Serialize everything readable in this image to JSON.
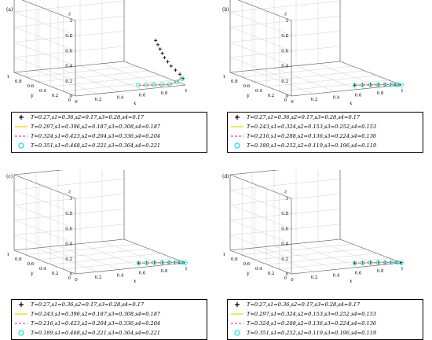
{
  "chart_data": [
    {
      "type": "scatter",
      "panel_label": "(a)",
      "axes": {
        "xlabel": "x",
        "ylabel": "y",
        "zlabel": "z",
        "x_ticks": [
          "0",
          "0.2",
          "0.4",
          "0.6",
          "0.8",
          "1"
        ],
        "y_ticks": [
          "1",
          "0.8",
          "0.6",
          "0.4",
          "0.2",
          "0"
        ],
        "z_ticks": [
          "0",
          "0.2",
          "0.4",
          "0.6",
          "0.8",
          "1"
        ],
        "xlim": [
          0,
          1
        ],
        "ylim": [
          0,
          1
        ],
        "zlim": [
          0,
          1
        ]
      },
      "series": [
        {
          "name": "T=0.27,s1=0.36,s2=0.17,s3=0.28,s4=0.17",
          "marker": "plus",
          "color": "#000000",
          "points": [
            [
              0.73,
              0.0,
              0.63
            ],
            [
              0.75,
              0.0,
              0.57
            ],
            [
              0.77,
              0.0,
              0.51
            ],
            [
              0.79,
              0.0,
              0.45
            ],
            [
              0.81,
              0.0,
              0.39
            ],
            [
              0.84,
              0.0,
              0.33
            ],
            [
              0.87,
              0.0,
              0.27
            ],
            [
              0.91,
              0.0,
              0.21
            ],
            [
              0.95,
              0.0,
              0.15
            ],
            [
              0.98,
              0.0,
              0.09
            ]
          ]
        },
        {
          "name": "T=0.297,s1=0.396,s2=0.187,s3=0.308,s4=0.187",
          "marker": "line",
          "color": "#f5d800",
          "points": [
            [
              0.66,
              0.14,
              0.0
            ],
            [
              0.72,
              0.12,
              0.0
            ],
            [
              0.78,
              0.1,
              0.0
            ],
            [
              0.84,
              0.08,
              0.0
            ],
            [
              0.9,
              0.06,
              0.0
            ],
            [
              0.95,
              0.05,
              0.04
            ],
            [
              0.98,
              0.02,
              0.1
            ]
          ]
        },
        {
          "name": "T=0.324,s1=0.423,s2=0.204,s3=0.336,s4=0.204",
          "marker": "dash",
          "color": "#e040e0",
          "points": [
            [
              0.66,
              0.15,
              0.0
            ],
            [
              0.72,
              0.13,
              0.0
            ],
            [
              0.78,
              0.11,
              0.0
            ],
            [
              0.84,
              0.09,
              0.0
            ],
            [
              0.9,
              0.07,
              0.0
            ],
            [
              0.95,
              0.05,
              0.04
            ],
            [
              0.98,
              0.02,
              0.09
            ]
          ]
        },
        {
          "name": "T=0.351,s1=0.468,s2=0.221,s3=0.364,s4=0.221",
          "marker": "circle",
          "color": "#00e5e5",
          "points": [
            [
              0.66,
              0.16,
              0.0
            ],
            [
              0.72,
              0.14,
              0.0
            ],
            [
              0.78,
              0.12,
              0.0
            ],
            [
              0.84,
              0.1,
              0.0
            ],
            [
              0.9,
              0.08,
              0.0
            ],
            [
              0.95,
              0.05,
              0.03
            ],
            [
              0.98,
              0.02,
              0.08
            ]
          ]
        }
      ]
    },
    {
      "type": "scatter",
      "panel_label": "(b)",
      "axes": {
        "xlabel": "x",
        "ylabel": "y",
        "zlabel": "z",
        "x_ticks": [
          "0",
          "0.2",
          "0.4",
          "0.6",
          "0.8",
          "1"
        ],
        "y_ticks": [
          "1",
          "0.8",
          "0.6",
          "0.4",
          "0.2",
          "0"
        ],
        "z_ticks": [
          "0",
          "0.2",
          "0.4",
          "0.6",
          "0.8",
          "1"
        ],
        "xlim": [
          0,
          1
        ],
        "ylim": [
          0,
          1
        ],
        "zlim": [
          0,
          1
        ]
      },
      "series": [
        {
          "name": "T=0.27,s1=0.36,s2=0.17,s3=0.28,s4=0.17",
          "marker": "plus",
          "color": "#000000",
          "points": [
            [
              0.66,
              0.15,
              0.0
            ],
            [
              0.72,
              0.13,
              0.0
            ],
            [
              0.78,
              0.11,
              0.0
            ],
            [
              0.84,
              0.09,
              0.0
            ],
            [
              0.89,
              0.07,
              0.0
            ],
            [
              0.93,
              0.05,
              0.0
            ],
            [
              0.96,
              0.03,
              0.0
            ],
            [
              0.99,
              0.01,
              0.0
            ]
          ]
        },
        {
          "name": "T=0.243,s1=0.324,s2=0.153,s3=0.252,s4=0.153",
          "marker": "line",
          "color": "#f5d800",
          "points": [
            [
              0.66,
              0.15,
              0.0
            ],
            [
              0.72,
              0.13,
              0.0
            ],
            [
              0.78,
              0.11,
              0.0
            ],
            [
              0.84,
              0.09,
              0.0
            ],
            [
              0.89,
              0.07,
              0.0
            ],
            [
              0.94,
              0.05,
              0.0
            ],
            [
              0.98,
              0.02,
              0.0
            ]
          ]
        },
        {
          "name": "T=0.216,s1=0.288,s2=0.136,s3=0.224,s4=0.136",
          "marker": "dash",
          "color": "#e040e0",
          "points": [
            [
              0.66,
              0.15,
              0.0
            ],
            [
              0.72,
              0.13,
              0.0
            ],
            [
              0.78,
              0.11,
              0.0
            ],
            [
              0.84,
              0.09,
              0.0
            ],
            [
              0.89,
              0.07,
              0.0
            ],
            [
              0.94,
              0.05,
              0.0
            ],
            [
              0.98,
              0.02,
              0.0
            ]
          ]
        },
        {
          "name": "T=0.189,s1=0.252,s2=0.119,s3=0.196,s4=0.119",
          "marker": "circle",
          "color": "#00e5e5",
          "points": [
            [
              0.66,
              0.15,
              0.0
            ],
            [
              0.72,
              0.13,
              0.0
            ],
            [
              0.78,
              0.11,
              0.0
            ],
            [
              0.84,
              0.09,
              0.0
            ],
            [
              0.89,
              0.07,
              0.0
            ],
            [
              0.94,
              0.05,
              0.0
            ],
            [
              0.98,
              0.03,
              0.0
            ],
            [
              1.0,
              0.0,
              0.0
            ]
          ]
        }
      ]
    },
    {
      "type": "scatter",
      "panel_label": "(c)",
      "axes": {
        "xlabel": "x",
        "ylabel": "y",
        "zlabel": "z",
        "x_ticks": [
          "0",
          "0.2",
          "0.4",
          "0.6",
          "0.8",
          "1"
        ],
        "y_ticks": [
          "1",
          "0.8",
          "0.6",
          "0.4",
          "0.2",
          "0"
        ],
        "z_ticks": [
          "0",
          "0.2",
          "0.4",
          "0.6",
          "0.8",
          "1"
        ],
        "xlim": [
          0,
          1
        ],
        "ylim": [
          0,
          1
        ],
        "zlim": [
          0,
          1
        ]
      },
      "series": [
        {
          "name": "T=0.27,s1=0.36,s2=0.17,s3=0.28,s4=0.17",
          "marker": "plus",
          "color": "#000000",
          "points": [
            [
              0.66,
              0.15,
              0.0
            ],
            [
              0.72,
              0.13,
              0.0
            ],
            [
              0.78,
              0.11,
              0.0
            ],
            [
              0.84,
              0.09,
              0.0
            ],
            [
              0.89,
              0.07,
              0.0
            ],
            [
              0.93,
              0.05,
              0.0
            ],
            [
              0.96,
              0.03,
              0.0
            ],
            [
              0.99,
              0.01,
              0.0
            ]
          ]
        },
        {
          "name": "T=0.243,s1=0.396,s2=0.187,s3=0.308,s4=0.187",
          "marker": "line",
          "color": "#f5d800",
          "points": [
            [
              0.66,
              0.15,
              0.0
            ],
            [
              0.72,
              0.13,
              0.0
            ],
            [
              0.78,
              0.11,
              0.0
            ],
            [
              0.84,
              0.09,
              0.0
            ],
            [
              0.89,
              0.07,
              0.0
            ],
            [
              0.94,
              0.05,
              0.0
            ],
            [
              0.98,
              0.02,
              0.0
            ]
          ]
        },
        {
          "name": "T=0.216,s1=0.423,s2=0.204,s3=0.336,s4=0.204",
          "marker": "dash",
          "color": "#e040e0",
          "points": [
            [
              0.66,
              0.15,
              0.0
            ],
            [
              0.72,
              0.13,
              0.0
            ],
            [
              0.78,
              0.11,
              0.0
            ],
            [
              0.84,
              0.09,
              0.0
            ],
            [
              0.89,
              0.07,
              0.0
            ],
            [
              0.94,
              0.05,
              0.0
            ],
            [
              0.98,
              0.02,
              0.0
            ]
          ]
        },
        {
          "name": "T=0.189,s1=0.468,s2=0.221,s3=0.364,s4=0.221",
          "marker": "circle",
          "color": "#00e5e5",
          "points": [
            [
              0.66,
              0.15,
              0.0
            ],
            [
              0.72,
              0.13,
              0.0
            ],
            [
              0.78,
              0.11,
              0.0
            ],
            [
              0.84,
              0.09,
              0.0
            ],
            [
              0.89,
              0.07,
              0.0
            ],
            [
              0.94,
              0.05,
              0.0
            ],
            [
              0.98,
              0.03,
              0.0
            ],
            [
              1.0,
              0.0,
              0.0
            ]
          ]
        }
      ]
    },
    {
      "type": "scatter",
      "panel_label": "(d)",
      "axes": {
        "xlabel": "x",
        "ylabel": "y",
        "zlabel": "z",
        "x_ticks": [
          "0",
          "0.2",
          "0.4",
          "0.6",
          "0.8",
          "1"
        ],
        "y_ticks": [
          "1",
          "0.8",
          "0.6",
          "0.4",
          "0.2",
          "0"
        ],
        "z_ticks": [
          "0",
          "0.2",
          "0.4",
          "0.6",
          "0.8",
          "1"
        ],
        "xlim": [
          0,
          1
        ],
        "ylim": [
          0,
          1
        ],
        "zlim": [
          0,
          1
        ]
      },
      "series": [
        {
          "name": "T=0.27,s1=0.36,s2=0.17,s3=0.28,s4=0.17",
          "marker": "plus",
          "color": "#000000",
          "points": [
            [
              0.66,
              0.15,
              0.0
            ],
            [
              0.72,
              0.13,
              0.0
            ],
            [
              0.78,
              0.11,
              0.0
            ],
            [
              0.84,
              0.09,
              0.0
            ],
            [
              0.89,
              0.07,
              0.0
            ],
            [
              0.93,
              0.05,
              0.0
            ],
            [
              0.97,
              0.03,
              0.0
            ],
            [
              1.0,
              0.01,
              0.0
            ]
          ]
        },
        {
          "name": "T=0.297,s1=0.324,s2=0.153,s3=0.252,s4=0.153",
          "marker": "line",
          "color": "#f5d800",
          "points": [
            [
              0.66,
              0.15,
              0.0
            ],
            [
              0.72,
              0.13,
              0.0
            ],
            [
              0.78,
              0.11,
              0.0
            ],
            [
              0.84,
              0.09,
              0.0
            ],
            [
              0.89,
              0.07,
              0.0
            ],
            [
              0.94,
              0.05,
              0.0
            ],
            [
              0.98,
              0.02,
              0.0
            ]
          ]
        },
        {
          "name": "T=0.324,s1=0.288,s2=0.136,s3=0.224,s4=0.136",
          "marker": "dash",
          "color": "#e040e0",
          "points": [
            [
              0.66,
              0.15,
              0.0
            ],
            [
              0.72,
              0.13,
              0.0
            ],
            [
              0.78,
              0.11,
              0.0
            ],
            [
              0.84,
              0.09,
              0.0
            ],
            [
              0.89,
              0.07,
              0.0
            ],
            [
              0.94,
              0.05,
              0.0
            ],
            [
              0.98,
              0.02,
              0.0
            ]
          ]
        },
        {
          "name": "T=0.351,s1=0.252,s2=0.119,s3=0.196,s4=0.119",
          "marker": "circle",
          "color": "#00e5e5",
          "points": [
            [
              0.66,
              0.15,
              0.0
            ],
            [
              0.72,
              0.13,
              0.0
            ],
            [
              0.78,
              0.11,
              0.0
            ],
            [
              0.84,
              0.09,
              0.0
            ],
            [
              0.89,
              0.07,
              0.0
            ],
            [
              0.94,
              0.05,
              0.0
            ],
            [
              0.98,
              0.03,
              0.0
            ],
            [
              1.0,
              0.0,
              0.0
            ]
          ]
        }
      ]
    }
  ]
}
